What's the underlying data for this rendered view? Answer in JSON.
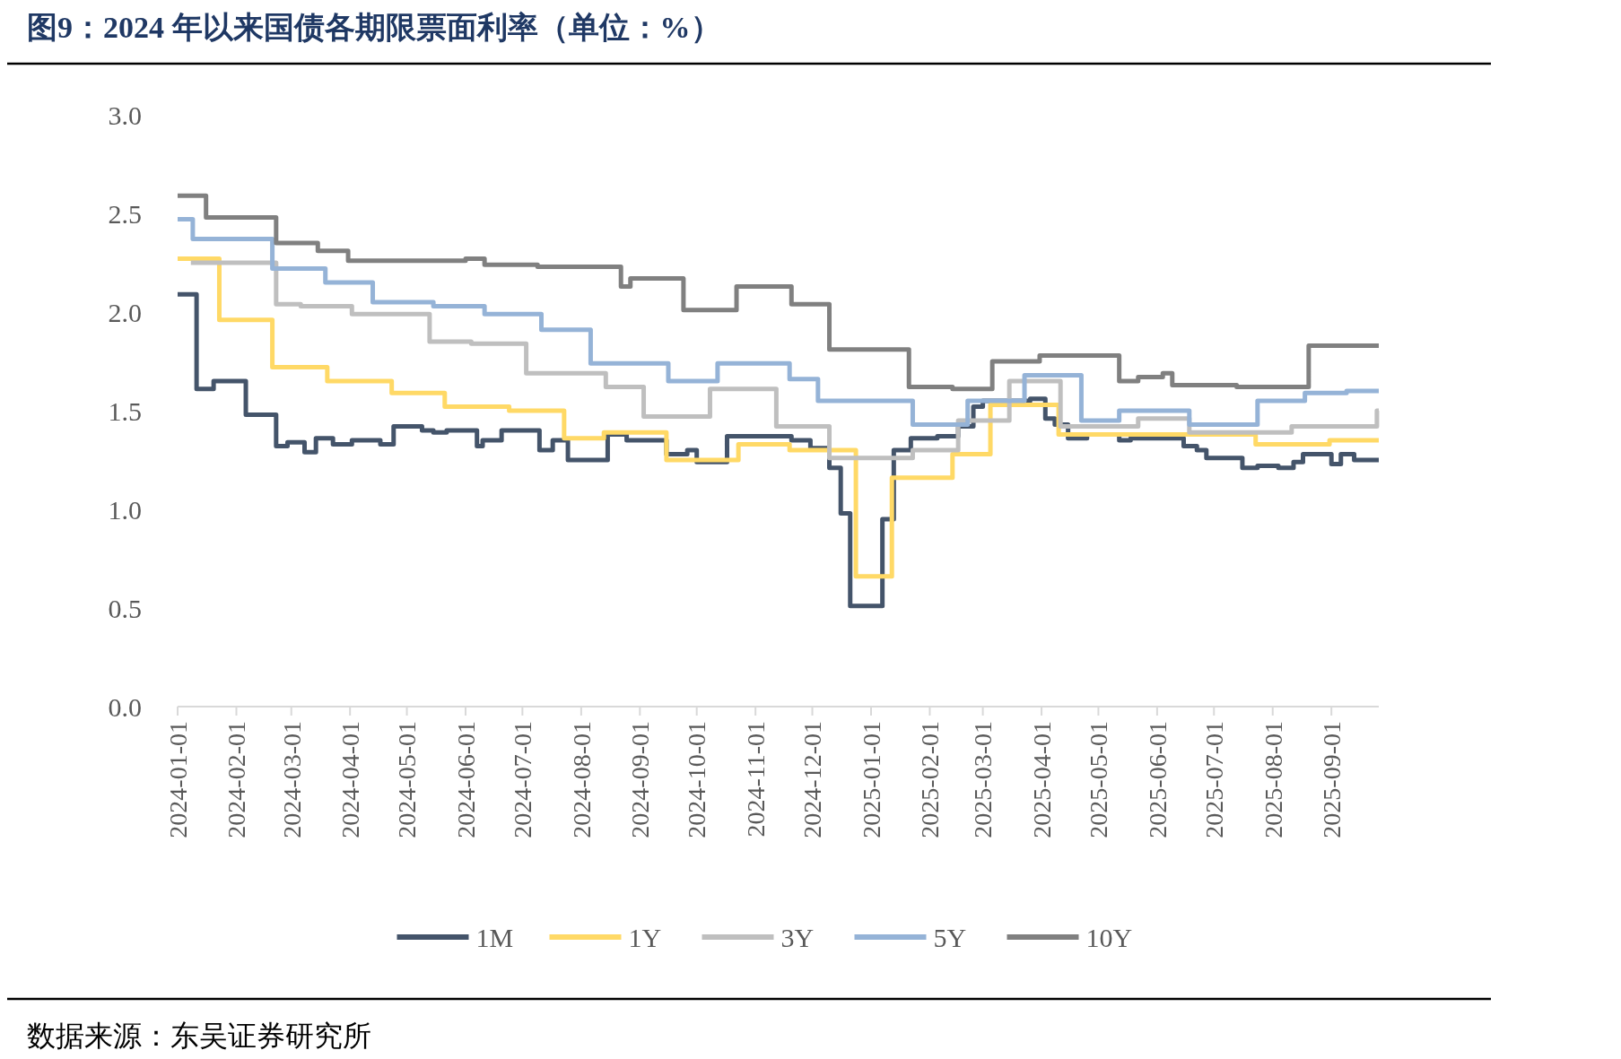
{
  "chart_data": {
    "type": "step",
    "title": "图9：2024 年以来国债各期限票面利率（单位：%）",
    "annotations": [
      "数据来源：东吴证券研究所"
    ],
    "xlim": [
      "2024-01-01",
      "2025-09-26"
    ],
    "xticks": [
      "2024-01-01",
      "2024-02-01",
      "2024-03-01",
      "2024-04-01",
      "2024-05-01",
      "2024-06-01",
      "2024-07-01",
      "2024-08-01",
      "2024-09-01",
      "2024-10-01",
      "2024-11-01",
      "2024-12-01",
      "2025-01-01",
      "2025-02-01",
      "2025-03-01",
      "2025-04-01",
      "2025-05-01",
      "2025-06-01",
      "2025-07-01",
      "2025-08-01",
      "2025-09-01"
    ],
    "ylim": [
      0,
      3
    ],
    "yticks": [
      {
        "value": 0,
        "label": "0.0"
      },
      {
        "value": 0.5,
        "label": "0.5"
      },
      {
        "value": 1,
        "label": "1.0"
      },
      {
        "value": 1.5,
        "label": "1.5"
      },
      {
        "value": 2,
        "label": "2.0"
      },
      {
        "value": 2.5,
        "label": "2.5"
      },
      {
        "value": 3,
        "label": "3.0"
      }
    ],
    "grid": false,
    "legend": "bottom",
    "line_style": "solid",
    "marker": "none",
    "series": [
      {
        "name": "1M",
        "color": "#44546a",
        "x": [
          "2024-01-01",
          "2024-01-11",
          "2024-01-20",
          "2024-02-06",
          "2024-02-22",
          "2024-02-28",
          "2024-03-08",
          "2024-03-14",
          "2024-03-23",
          "2024-04-02",
          "2024-04-17",
          "2024-04-24",
          "2024-05-09",
          "2024-05-15",
          "2024-05-22",
          "2024-06-07",
          "2024-06-10",
          "2024-06-20",
          "2024-07-10",
          "2024-07-17",
          "2024-07-25",
          "2024-08-15",
          "2024-08-25",
          "2024-09-15",
          "2024-09-26",
          "2024-10-01",
          "2024-10-10",
          "2024-10-17",
          "2024-11-20",
          "2024-11-30",
          "2024-12-10",
          "2024-12-16",
          "2024-12-21",
          "2025-01-07",
          "2025-01-13",
          "2025-01-22",
          "2025-02-05",
          "2025-02-16",
          "2025-02-24",
          "2025-03-01",
          "2025-03-26",
          "2025-04-03",
          "2025-04-08",
          "2025-04-15",
          "2025-04-25",
          "2025-05-12",
          "2025-05-18",
          "2025-06-15",
          "2025-06-22",
          "2025-06-27",
          "2025-07-16",
          "2025-07-24",
          "2025-08-04",
          "2025-08-12",
          "2025-08-17",
          "2025-09-01",
          "2025-09-06",
          "2025-09-13",
          "2025-09-26"
        ],
        "values": [
          2.09,
          1.61,
          1.65,
          1.48,
          1.32,
          1.34,
          1.29,
          1.36,
          1.33,
          1.35,
          1.33,
          1.42,
          1.4,
          1.39,
          1.4,
          1.32,
          1.35,
          1.4,
          1.3,
          1.35,
          1.25,
          1.38,
          1.35,
          1.28,
          1.3,
          1.24,
          1.24,
          1.37,
          1.35,
          1.31,
          1.21,
          0.98,
          0.51,
          0.95,
          1.3,
          1.36,
          1.37,
          1.42,
          1.52,
          1.55,
          1.56,
          1.46,
          1.43,
          1.36,
          1.38,
          1.35,
          1.36,
          1.32,
          1.3,
          1.26,
          1.21,
          1.22,
          1.21,
          1.24,
          1.28,
          1.23,
          1.28,
          1.25,
          1.25
        ]
      },
      {
        "name": "1Y",
        "color": "#ffd966",
        "x": [
          "2024-01-01",
          "2024-01-23",
          "2024-02-20",
          "2024-03-20",
          "2024-04-23",
          "2024-05-21",
          "2024-06-24",
          "2024-07-23",
          "2024-08-13",
          "2024-09-15",
          "2024-10-23",
          "2024-11-19",
          "2024-12-24",
          "2025-01-12",
          "2025-02-13",
          "2025-03-05",
          "2025-04-10",
          "2025-07-23",
          "2025-08-31",
          "2025-09-26"
        ],
        "values": [
          2.27,
          1.96,
          1.72,
          1.65,
          1.59,
          1.52,
          1.5,
          1.36,
          1.39,
          1.25,
          1.33,
          1.3,
          0.66,
          1.16,
          1.28,
          1.53,
          1.38,
          1.33,
          1.35,
          1.35
        ]
      },
      {
        "name": "3Y",
        "color": "#bfbfbf",
        "x": [
          "2024-01-08",
          "2024-02-22",
          "2024-03-06",
          "2024-04-02",
          "2024-05-13",
          "2024-06-04",
          "2024-07-03",
          "2024-08-14",
          "2024-09-03",
          "2024-10-08",
          "2024-11-12",
          "2024-12-10",
          "2025-01-23",
          "2025-02-16",
          "2025-03-15",
          "2025-04-11",
          "2025-05-22",
          "2025-06-18",
          "2025-08-11",
          "2025-09-25",
          "2025-09-26"
        ],
        "values": [
          2.25,
          2.04,
          2.03,
          1.99,
          1.85,
          1.84,
          1.69,
          1.62,
          1.47,
          1.61,
          1.42,
          1.26,
          1.3,
          1.45,
          1.65,
          1.42,
          1.46,
          1.39,
          1.42,
          1.5,
          1.5
        ]
      },
      {
        "name": "5Y",
        "color": "#95b3d7",
        "x": [
          "2024-01-01",
          "2024-01-09",
          "2024-02-20",
          "2024-03-19",
          "2024-04-13",
          "2024-05-15",
          "2024-06-11",
          "2024-07-11",
          "2024-08-06",
          "2024-09-16",
          "2024-10-12",
          "2024-11-19",
          "2024-12-04",
          "2025-01-23",
          "2025-02-21",
          "2025-03-23",
          "2025-04-22",
          "2025-05-12",
          "2025-06-18",
          "2025-07-24",
          "2025-08-18",
          "2025-09-09",
          "2025-09-26"
        ],
        "values": [
          2.47,
          2.37,
          2.22,
          2.15,
          2.05,
          2.03,
          1.99,
          1.91,
          1.74,
          1.65,
          1.74,
          1.66,
          1.55,
          1.43,
          1.55,
          1.68,
          1.45,
          1.5,
          1.43,
          1.55,
          1.59,
          1.6,
          1.6
        ]
      },
      {
        "name": "10Y",
        "color": "#808080",
        "x": [
          "2024-01-01",
          "2024-01-16",
          "2024-02-22",
          "2024-03-15",
          "2024-03-31",
          "2024-06-01",
          "2024-06-11",
          "2024-07-09",
          "2024-08-22",
          "2024-08-27",
          "2024-09-24",
          "2024-10-22",
          "2024-11-20",
          "2024-12-10",
          "2025-01-21",
          "2025-02-13",
          "2025-03-06",
          "2025-03-31",
          "2025-05-12",
          "2025-05-22",
          "2025-06-04",
          "2025-06-09",
          "2025-07-13",
          "2025-08-20",
          "2025-09-26"
        ],
        "values": [
          2.59,
          2.48,
          2.35,
          2.31,
          2.26,
          2.27,
          2.24,
          2.23,
          2.13,
          2.17,
          2.01,
          2.13,
          2.04,
          1.81,
          1.62,
          1.61,
          1.75,
          1.78,
          1.65,
          1.67,
          1.69,
          1.63,
          1.62,
          1.83,
          1.83
        ]
      }
    ]
  }
}
